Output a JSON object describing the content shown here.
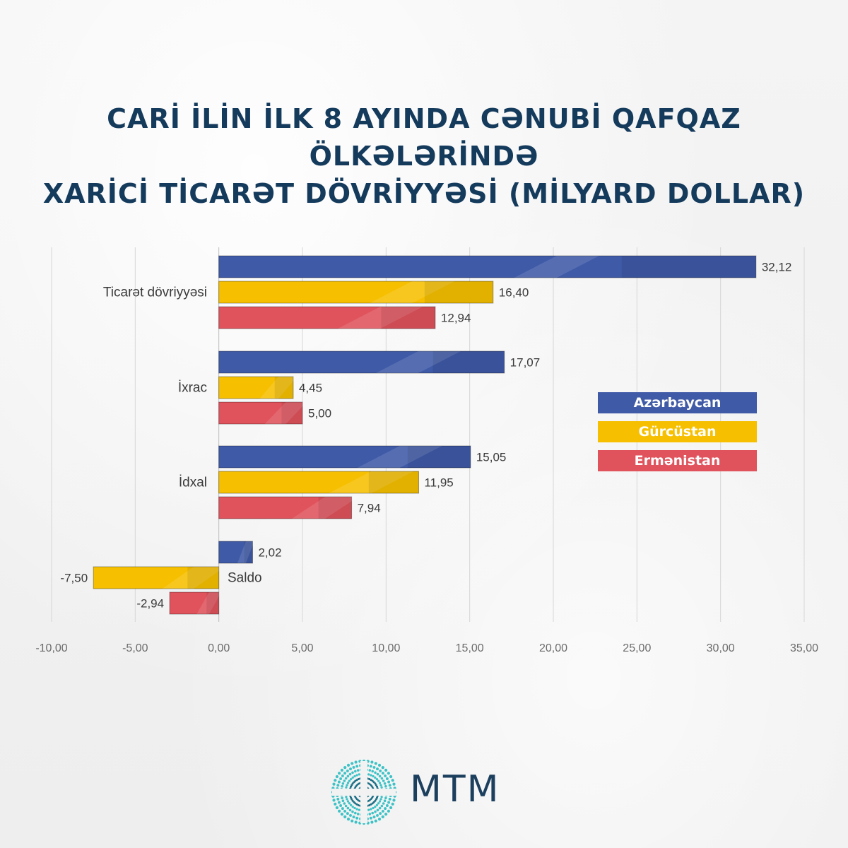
{
  "title": {
    "line1": "CARİ İLİN İLK 8 AYINDA CƏNUBİ QAFQAZ ÖLKƏLƏRİNDƏ",
    "line2": "XARİCİ TİCARƏT DÖVRİYYƏSİ (MİLYARD DOLLAR)"
  },
  "colors": {
    "azerbaijan": "#3f5aa7",
    "georgia": "#f6c000",
    "armenia": "#e0535c",
    "title": "#143a5c",
    "grid": "#d6d6d6",
    "tick_text": "#6b6b6b",
    "label_text": "#3a3a3a"
  },
  "legend": [
    {
      "label": "Azərbaycan",
      "color": "#3f5aa7"
    },
    {
      "label": "Gürcüstan",
      "color": "#f6c000"
    },
    {
      "label": "Ermənistan",
      "color": "#e0535c"
    }
  ],
  "chart_data": {
    "type": "bar",
    "orientation": "horizontal",
    "categories": [
      "Ticarət dövriyyəsi",
      "İxrac",
      "İdxal",
      "Saldo"
    ],
    "series": [
      {
        "name": "Azərbaycan",
        "values": [
          32.12,
          17.07,
          15.05,
          2.02
        ],
        "labels": [
          "32,12",
          "17,07",
          "15,05",
          "2,02"
        ]
      },
      {
        "name": "Gürcüstan",
        "values": [
          16.4,
          4.45,
          11.95,
          -7.5
        ],
        "labels": [
          "16,40",
          "4,45",
          "11,95",
          "-7,50"
        ]
      },
      {
        "name": "Ermənistan",
        "values": [
          12.94,
          5.0,
          7.94,
          -2.94
        ],
        "labels": [
          "12,94",
          "5,00",
          "7,94",
          "-2,94"
        ]
      }
    ],
    "xlim": [
      -10,
      35
    ],
    "xticks": [
      -10,
      -5,
      0,
      5,
      10,
      15,
      20,
      25,
      30,
      35
    ],
    "xtick_labels": [
      "-10,00",
      "-5,00",
      "0,00",
      "5,00",
      "10,00",
      "15,00",
      "20,00",
      "25,00",
      "30,00",
      "35,00"
    ],
    "grid": "vertical",
    "legend_position": "right"
  },
  "logo": {
    "text": "MTM"
  }
}
